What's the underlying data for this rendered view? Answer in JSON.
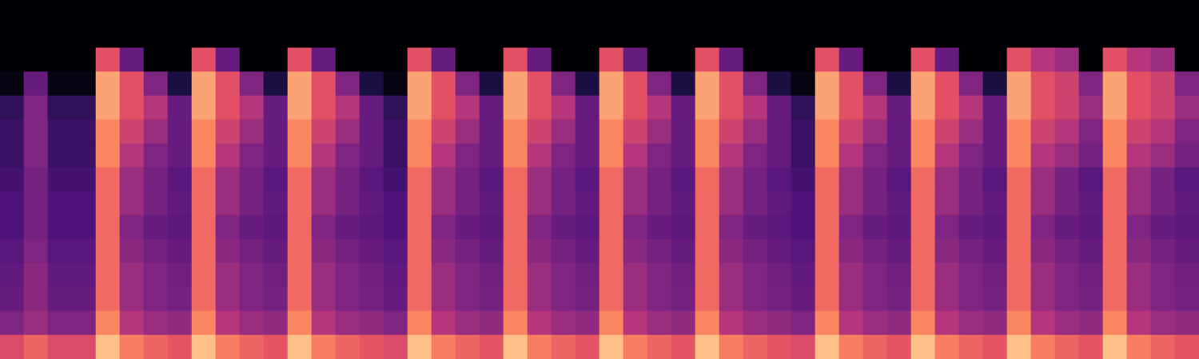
{
  "chart_data": {
    "type": "heatmap",
    "color": "magma",
    "zlim": [
      -80,
      0
    ],
    "tick_labels": false,
    "grid": false,
    "cells": [
      [
        -80,
        -80,
        -80,
        -80,
        -80,
        -80,
        -80,
        -80,
        -80,
        -80,
        -80,
        -80,
        -80,
        -80,
        -80,
        -80,
        -80,
        -80,
        -80,
        -80,
        -80,
        -80,
        -80,
        -80,
        -80,
        -80,
        -80,
        -80,
        -80,
        -80,
        -80,
        -80,
        -80,
        -80,
        -80,
        -80,
        -80,
        -80,
        -80,
        -80,
        -80,
        -80,
        -80,
        -80,
        -80,
        -80,
        -80,
        -80,
        -80,
        -80
      ],
      [
        -80,
        -80,
        -80,
        -80,
        -80,
        -80,
        -80,
        -80,
        -80,
        -80,
        -80,
        -80,
        -80,
        -80,
        -80,
        -80,
        -80,
        -80,
        -80,
        -80,
        -80,
        -80,
        -80,
        -80,
        -80,
        -80,
        -80,
        -80,
        -80,
        -80,
        -80,
        -80,
        -80,
        -80,
        -80,
        -80,
        -80,
        -80,
        -80,
        -80,
        -80,
        -80,
        -80,
        -80,
        -80,
        -80,
        -80,
        -80,
        -80,
        -80
      ],
      [
        -80,
        -80,
        -80,
        -80,
        -30,
        -55,
        -80,
        -80,
        -30,
        -55,
        -80,
        -80,
        -30,
        -55,
        -80,
        -80,
        -80,
        -30,
        -55,
        -80,
        -80,
        -30,
        -55,
        -80,
        -80,
        -30,
        -55,
        -80,
        -80,
        -30,
        -55,
        -80,
        -80,
        -80,
        -30,
        -55,
        -80,
        -80,
        -30,
        -55,
        -80,
        -80,
        -30,
        -40,
        -45,
        -80,
        -30,
        -40,
        -45,
        -80
      ],
      [
        -78,
        -55,
        -78,
        -78,
        -15,
        -30,
        -50,
        -70,
        -15,
        -30,
        -50,
        -70,
        -15,
        -30,
        -50,
        -70,
        -78,
        -15,
        -30,
        -50,
        -70,
        -15,
        -30,
        -50,
        -70,
        -15,
        -30,
        -50,
        -70,
        -15,
        -30,
        -50,
        -70,
        -78,
        -15,
        -30,
        -50,
        -70,
        -15,
        -30,
        -50,
        -70,
        -15,
        -30,
        -35,
        -50,
        -15,
        -30,
        -35,
        -50
      ],
      [
        -66,
        -50,
        -66,
        -66,
        -15,
        -30,
        -40,
        -55,
        -15,
        -30,
        -40,
        -55,
        -15,
        -30,
        -40,
        -55,
        -66,
        -15,
        -30,
        -40,
        -55,
        -15,
        -30,
        -40,
        -55,
        -15,
        -30,
        -40,
        -55,
        -15,
        -30,
        -40,
        -55,
        -66,
        -15,
        -30,
        -40,
        -55,
        -15,
        -30,
        -40,
        -55,
        -15,
        -30,
        -35,
        -45,
        -15,
        -30,
        -35,
        -45
      ],
      [
        -64,
        -50,
        -64,
        -64,
        -20,
        -35,
        -45,
        -55,
        -20,
        -35,
        -45,
        -55,
        -20,
        -35,
        -45,
        -55,
        -64,
        -20,
        -35,
        -45,
        -55,
        -20,
        -35,
        -45,
        -55,
        -20,
        -35,
        -45,
        -55,
        -20,
        -35,
        -45,
        -55,
        -64,
        -20,
        -35,
        -45,
        -55,
        -20,
        -35,
        -45,
        -55,
        -20,
        -35,
        -40,
        -50,
        -20,
        -35,
        -40,
        -50
      ],
      [
        -64,
        -50,
        -64,
        -64,
        -20,
        -40,
        -50,
        -55,
        -20,
        -40,
        -50,
        -55,
        -20,
        -40,
        -50,
        -55,
        -64,
        -20,
        -40,
        -50,
        -55,
        -20,
        -40,
        -50,
        -55,
        -20,
        -40,
        -50,
        -55,
        -20,
        -40,
        -50,
        -55,
        -64,
        -20,
        -40,
        -50,
        -55,
        -20,
        -40,
        -50,
        -55,
        -20,
        -40,
        -45,
        -52,
        -20,
        -40,
        -45,
        -52
      ],
      [
        -62,
        -52,
        -62,
        -62,
        -25,
        -45,
        -52,
        -58,
        -25,
        -45,
        -52,
        -58,
        -25,
        -45,
        -52,
        -58,
        -62,
        -25,
        -45,
        -52,
        -58,
        -25,
        -45,
        -52,
        -58,
        -25,
        -45,
        -52,
        -58,
        -25,
        -45,
        -52,
        -58,
        -62,
        -25,
        -45,
        -52,
        -58,
        -25,
        -45,
        -52,
        -58,
        -25,
        -45,
        -52,
        -58,
        -25,
        -45,
        -52,
        -58
      ],
      [
        -60,
        -52,
        -60,
        -60,
        -25,
        -45,
        -52,
        -56,
        -25,
        -45,
        -52,
        -56,
        -25,
        -45,
        -52,
        -56,
        -60,
        -25,
        -45,
        -52,
        -56,
        -25,
        -45,
        -52,
        -56,
        -25,
        -45,
        -52,
        -56,
        -25,
        -45,
        -52,
        -56,
        -60,
        -25,
        -45,
        -52,
        -56,
        -25,
        -45,
        -52,
        -56,
        -25,
        -45,
        -52,
        -56,
        -25,
        -45,
        -52,
        -56
      ],
      [
        -60,
        -52,
        -60,
        -60,
        -25,
        -50,
        -55,
        -57,
        -25,
        -50,
        -55,
        -57,
        -25,
        -50,
        -55,
        -57,
        -60,
        -25,
        -50,
        -55,
        -57,
        -25,
        -50,
        -55,
        -57,
        -25,
        -50,
        -55,
        -57,
        -25,
        -50,
        -55,
        -57,
        -60,
        -25,
        -50,
        -55,
        -57,
        -25,
        -50,
        -55,
        -57,
        -25,
        -50,
        -55,
        -57,
        -25,
        -50,
        -55,
        -57
      ],
      [
        -58,
        -50,
        -58,
        -58,
        -25,
        -48,
        -52,
        -55,
        -25,
        -48,
        -52,
        -55,
        -25,
        -48,
        -52,
        -55,
        -58,
        -25,
        -48,
        -52,
        -55,
        -25,
        -48,
        -52,
        -55,
        -25,
        -48,
        -52,
        -55,
        -25,
        -48,
        -52,
        -55,
        -58,
        -25,
        -48,
        -52,
        -55,
        -25,
        -48,
        -52,
        -55,
        -25,
        -48,
        -52,
        -55,
        -25,
        -48,
        -52,
        -55
      ],
      [
        -56,
        -48,
        -56,
        -56,
        -25,
        -45,
        -50,
        -53,
        -25,
        -45,
        -50,
        -53,
        -25,
        -45,
        -50,
        -53,
        -56,
        -25,
        -45,
        -50,
        -53,
        -25,
        -45,
        -50,
        -53,
        -25,
        -45,
        -50,
        -53,
        -25,
        -45,
        -50,
        -53,
        -56,
        -25,
        -45,
        -50,
        -53,
        -25,
        -45,
        -50,
        -53,
        -25,
        -45,
        -50,
        -53,
        -25,
        -45,
        -50,
        -53
      ],
      [
        -55,
        -48,
        -55,
        -55,
        -25,
        -45,
        -50,
        -52,
        -25,
        -45,
        -50,
        -52,
        -25,
        -45,
        -50,
        -52,
        -55,
        -25,
        -45,
        -50,
        -52,
        -25,
        -45,
        -50,
        -52,
        -25,
        -45,
        -50,
        -52,
        -25,
        -45,
        -50,
        -52,
        -55,
        -25,
        -45,
        -50,
        -52,
        -25,
        -45,
        -50,
        -52,
        -25,
        -45,
        -50,
        -52,
        -25,
        -45,
        -50,
        -52
      ],
      [
        -50,
        -45,
        -50,
        -50,
        -20,
        -40,
        -45,
        -47,
        -20,
        -40,
        -45,
        -47,
        -20,
        -40,
        -45,
        -47,
        -50,
        -20,
        -40,
        -45,
        -47,
        -20,
        -40,
        -45,
        -47,
        -20,
        -40,
        -45,
        -47,
        -20,
        -40,
        -45,
        -47,
        -50,
        -20,
        -40,
        -45,
        -47,
        -20,
        -40,
        -45,
        -47,
        -20,
        -40,
        -45,
        -47,
        -20,
        -40,
        -45,
        -47
      ],
      [
        -32,
        -26,
        -32,
        -32,
        -10,
        -22,
        -26,
        -29,
        -10,
        -22,
        -26,
        -29,
        -10,
        -22,
        -26,
        -29,
        -32,
        -10,
        -22,
        -26,
        -29,
        -10,
        -22,
        -26,
        -29,
        -10,
        -22,
        -26,
        -29,
        -10,
        -22,
        -26,
        -29,
        -32,
        -10,
        -22,
        -26,
        -29,
        -10,
        -22,
        -26,
        -29,
        -10,
        -22,
        -26,
        -29,
        -10,
        -22,
        -26,
        -29
      ]
    ]
  }
}
